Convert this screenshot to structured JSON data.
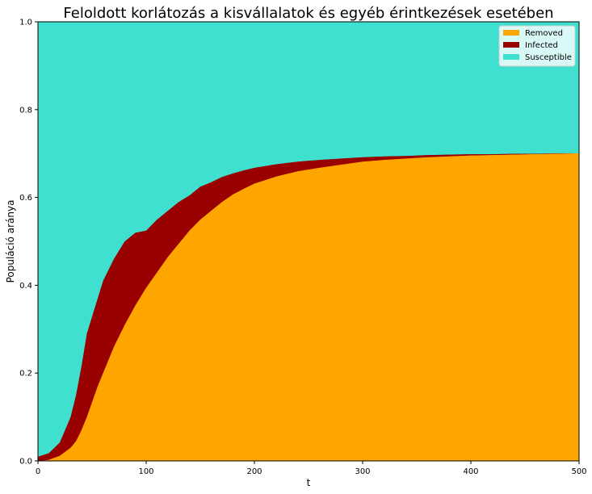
{
  "chart_data": {
    "type": "area",
    "stacked": true,
    "title": "Feloldott korlátozás a kisvállalatok és egyéb érintkezések esetében",
    "xlabel": "t",
    "ylabel": "Populáció aránya",
    "xlim": [
      0,
      500
    ],
    "ylim": [
      0,
      1
    ],
    "xticks": [
      0,
      100,
      200,
      300,
      400,
      500
    ],
    "yticks": [
      0.0,
      0.2,
      0.4,
      0.6,
      0.8,
      1.0
    ],
    "xtick_labels": [
      "0",
      "100",
      "200",
      "300",
      "400",
      "500"
    ],
    "ytick_labels": [
      "0.0",
      "0.2",
      "0.4",
      "0.6",
      "0.8",
      "1.0"
    ],
    "grid": false,
    "legend_position": "top-right",
    "x": [
      0,
      10,
      20,
      30,
      35,
      40,
      45,
      50,
      55,
      60,
      70,
      80,
      90,
      100,
      110,
      120,
      130,
      140,
      150,
      160,
      170,
      180,
      190,
      200,
      220,
      240,
      260,
      280,
      300,
      320,
      340,
      360,
      380,
      400,
      420,
      440,
      460,
      480,
      500
    ],
    "series": [
      {
        "name": "Removed",
        "color": "#ffa500",
        "values": [
          0.0,
          0.003,
          0.012,
          0.03,
          0.045,
          0.07,
          0.1,
          0.135,
          0.17,
          0.2,
          0.26,
          0.31,
          0.355,
          0.395,
          0.43,
          0.465,
          0.495,
          0.525,
          0.55,
          0.57,
          0.59,
          0.607,
          0.62,
          0.632,
          0.648,
          0.66,
          0.668,
          0.675,
          0.682,
          0.686,
          0.689,
          0.692,
          0.694,
          0.696,
          0.697,
          0.698,
          0.699,
          0.7,
          0.701
        ]
      },
      {
        "name": "Infected",
        "color": "#990000",
        "values": [
          0.01,
          0.015,
          0.03,
          0.07,
          0.105,
          0.145,
          0.19,
          0.195,
          0.2,
          0.21,
          0.2,
          0.19,
          0.165,
          0.13,
          0.12,
          0.105,
          0.095,
          0.08,
          0.075,
          0.065,
          0.057,
          0.048,
          0.042,
          0.036,
          0.028,
          0.022,
          0.018,
          0.014,
          0.01,
          0.008,
          0.006,
          0.005,
          0.004,
          0.003,
          0.002,
          0.002,
          0.001,
          0.001,
          0.0
        ]
      },
      {
        "name": "Susceptible",
        "color": "#40e0d0",
        "values": [
          0.99,
          0.982,
          0.958,
          0.9,
          0.85,
          0.785,
          0.71,
          0.67,
          0.63,
          0.59,
          0.54,
          0.5,
          0.48,
          0.475,
          0.45,
          0.43,
          0.41,
          0.395,
          0.375,
          0.365,
          0.353,
          0.345,
          0.338,
          0.332,
          0.324,
          0.318,
          0.314,
          0.311,
          0.308,
          0.306,
          0.305,
          0.303,
          0.302,
          0.301,
          0.301,
          0.3,
          0.3,
          0.299,
          0.299
        ]
      }
    ]
  }
}
